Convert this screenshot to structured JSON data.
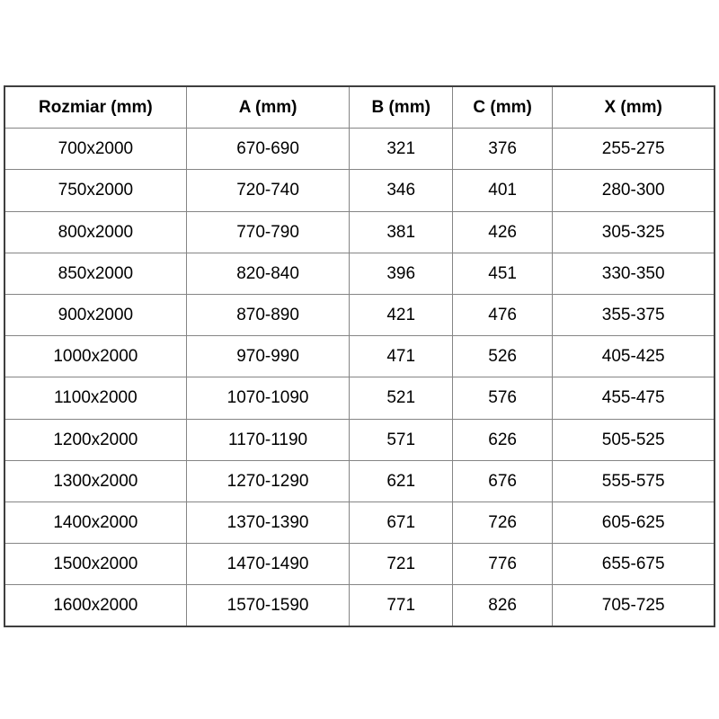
{
  "colors": {
    "outer_border": "#3f3f3f",
    "grid_line": "#858585",
    "text": "#000000",
    "background": "#ffffff"
  },
  "table": {
    "headers": [
      "Rozmiar (mm)",
      "A (mm)",
      "B (mm)",
      "C (mm)",
      "X (mm)"
    ],
    "rows": [
      [
        "700x2000",
        "670-690",
        "321",
        "376",
        "255-275"
      ],
      [
        "750x2000",
        "720-740",
        "346",
        "401",
        "280-300"
      ],
      [
        "800x2000",
        "770-790",
        "381",
        "426",
        "305-325"
      ],
      [
        "850x2000",
        "820-840",
        "396",
        "451",
        "330-350"
      ],
      [
        "900x2000",
        "870-890",
        "421",
        "476",
        "355-375"
      ],
      [
        "1000x2000",
        "970-990",
        "471",
        "526",
        "405-425"
      ],
      [
        "1100x2000",
        "1070-1090",
        "521",
        "576",
        "455-475"
      ],
      [
        "1200x2000",
        "1170-1190",
        "571",
        "626",
        "505-525"
      ],
      [
        "1300x2000",
        "1270-1290",
        "621",
        "676",
        "555-575"
      ],
      [
        "1400x2000",
        "1370-1390",
        "671",
        "726",
        "605-625"
      ],
      [
        "1500x2000",
        "1470-1490",
        "721",
        "776",
        "655-675"
      ],
      [
        "1600x2000",
        "1570-1590",
        "771",
        "826",
        "705-725"
      ]
    ]
  },
  "chart_data": {
    "type": "table",
    "title": "",
    "columns": [
      "Rozmiar (mm)",
      "A (mm)",
      "B (mm)",
      "C (mm)",
      "X (mm)"
    ],
    "rows": [
      [
        "700x2000",
        "670-690",
        321,
        376,
        "255-275"
      ],
      [
        "750x2000",
        "720-740",
        346,
        401,
        "280-300"
      ],
      [
        "800x2000",
        "770-790",
        381,
        426,
        "305-325"
      ],
      [
        "850x2000",
        "820-840",
        396,
        451,
        "330-350"
      ],
      [
        "900x2000",
        "870-890",
        421,
        476,
        "355-375"
      ],
      [
        "1000x2000",
        "970-990",
        471,
        526,
        "405-425"
      ],
      [
        "1100x2000",
        "1070-1090",
        521,
        576,
        "455-475"
      ],
      [
        "1200x2000",
        "1170-1190",
        571,
        626,
        "505-525"
      ],
      [
        "1300x2000",
        "1270-1290",
        621,
        676,
        "555-575"
      ],
      [
        "1400x2000",
        "1370-1390",
        671,
        726,
        "605-625"
      ],
      [
        "1500x2000",
        "1470-1490",
        721,
        776,
        "655-675"
      ],
      [
        "1600x2000",
        "1570-1590",
        771,
        826,
        "705-725"
      ]
    ],
    "layout": {
      "grid": true,
      "header_bold": true,
      "text_align": "center"
    }
  }
}
